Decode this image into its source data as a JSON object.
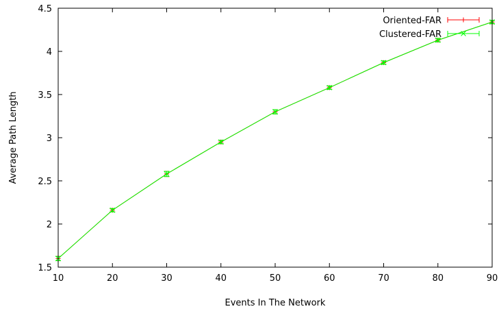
{
  "chart_data": {
    "type": "line",
    "title": "",
    "xlabel": "Events In The Network",
    "ylabel": "Average Path Length",
    "xlim": [
      10,
      90
    ],
    "ylim": [
      1.5,
      4.5
    ],
    "x_ticks": [
      10,
      20,
      30,
      40,
      50,
      60,
      70,
      80,
      90
    ],
    "y_ticks": [
      1.5,
      2,
      2.5,
      3,
      3.5,
      4,
      4.5
    ],
    "y_tick_labels": [
      "1.5",
      "2",
      "2.5",
      "3",
      "3.5",
      "4",
      "4.5"
    ],
    "grid": false,
    "legend_position": "top-right",
    "x": [
      10,
      20,
      30,
      40,
      50,
      60,
      70,
      80,
      90
    ],
    "series": [
      {
        "name": "Oriented-FAR",
        "color": "#ff0000",
        "marker": "plus",
        "values": [
          1.6,
          2.16,
          2.58,
          2.95,
          3.3,
          3.58,
          3.87,
          4.13,
          4.34
        ],
        "errors": [
          0.025,
          0.02,
          0.03,
          0.02,
          0.025,
          0.02,
          0.02,
          0.02,
          0.02
        ]
      },
      {
        "name": "Clustered-FAR",
        "color": "#00ff00",
        "marker": "x",
        "values": [
          1.6,
          2.16,
          2.58,
          2.95,
          3.3,
          3.58,
          3.87,
          4.13,
          4.34
        ],
        "errors": [
          0.025,
          0.02,
          0.03,
          0.02,
          0.025,
          0.02,
          0.02,
          0.02,
          0.02
        ]
      }
    ]
  }
}
